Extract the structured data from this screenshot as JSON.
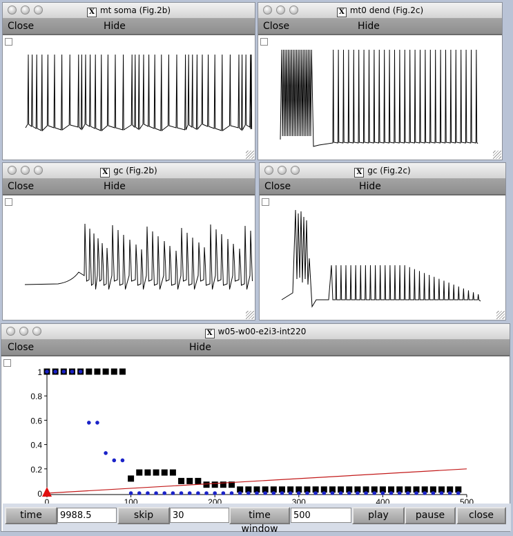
{
  "windows": [
    {
      "id": "w1",
      "title": "mt soma (Fig.2b)",
      "close_label": "Close",
      "hide_label": "Hide"
    },
    {
      "id": "w2",
      "title": "mt0 dend (Fig.2c)",
      "close_label": "Close",
      "hide_label": "Hide"
    },
    {
      "id": "w3",
      "title": "gc (Fig.2b)",
      "close_label": "Close",
      "hide_label": "Hide"
    },
    {
      "id": "w4",
      "title": "gc (Fig.2c)",
      "close_label": "Close",
      "hide_label": "Hide"
    },
    {
      "id": "w5",
      "title": "w05-w00-e2i3-int220",
      "close_label": "Close",
      "hide_label": "Hide"
    }
  ],
  "title_icon": "X",
  "chart_data": {
    "type": "scatter",
    "xlim": [
      0,
      500
    ],
    "ylim": [
      0,
      1
    ],
    "xticks": [
      "0",
      "100",
      "200",
      "300",
      "400",
      "500"
    ],
    "yticks": [
      "0",
      "0.2",
      "0.4",
      "0.6",
      "0.8",
      "1"
    ],
    "series": [
      {
        "marker": "square",
        "color": "#000000",
        "x": [
          0,
          10,
          20,
          30,
          40,
          50,
          60,
          70,
          80,
          90,
          100,
          110,
          120,
          130,
          140,
          150,
          160,
          170,
          180,
          190,
          200,
          210,
          220,
          230,
          240,
          250,
          260,
          270,
          280,
          290,
          300,
          310,
          320,
          330,
          340,
          350,
          360,
          370,
          380,
          390,
          400,
          410,
          420,
          430,
          440,
          450,
          460,
          470,
          480,
          490
        ],
        "y": [
          1,
          1,
          1,
          1,
          1,
          1,
          1,
          1,
          1,
          1,
          0.12,
          0.17,
          0.17,
          0.17,
          0.17,
          0.17,
          0.1,
          0.1,
          0.1,
          0.07,
          0.07,
          0.07,
          0.07,
          0.03,
          0.03,
          0.03,
          0.03,
          0.03,
          0.03,
          0.03,
          0.03,
          0.03,
          0.03,
          0.03,
          0.03,
          0.03,
          0.03,
          0.03,
          0.03,
          0.03,
          0.03,
          0.03,
          0.03,
          0.03,
          0.03,
          0.03,
          0.03,
          0.03,
          0.03,
          0.03
        ]
      },
      {
        "marker": "dot",
        "color": "#1a22c8",
        "x": [
          0,
          10,
          20,
          30,
          40,
          50,
          60,
          70,
          80,
          90,
          100,
          110,
          120,
          130,
          140,
          150,
          160,
          170,
          180,
          190,
          200,
          210,
          220,
          230,
          240,
          250,
          260,
          270,
          280,
          290,
          300,
          310,
          320,
          330,
          340,
          350,
          360,
          370,
          380,
          390,
          400,
          410,
          420,
          430,
          440,
          450,
          460,
          470,
          480,
          490
        ],
        "y": [
          1,
          1,
          1,
          1,
          1,
          0.58,
          0.58,
          0.33,
          0.27,
          0.27,
          0,
          0,
          0,
          0,
          0,
          0,
          0,
          0,
          0,
          0,
          0,
          0,
          0,
          0,
          0,
          0,
          0,
          0,
          0,
          0,
          0,
          0,
          0,
          0,
          0,
          0,
          0,
          0,
          0,
          0,
          0,
          0,
          0,
          0,
          0,
          0,
          0,
          0,
          0,
          0
        ]
      },
      {
        "marker": "line",
        "color": "#c21818",
        "x": [
          0,
          500
        ],
        "y": [
          0,
          0.2
        ]
      },
      {
        "marker": "triangle",
        "color": "#e01010",
        "x": [
          0
        ],
        "y": [
          0
        ]
      }
    ]
  },
  "controls": {
    "time_label": "time",
    "time_value": "9988.5",
    "skip_label": "skip",
    "skip_value": "30",
    "window_label": "time window",
    "window_value": "500",
    "play_label": "play",
    "pause_label": "pause",
    "close_label": "close"
  }
}
